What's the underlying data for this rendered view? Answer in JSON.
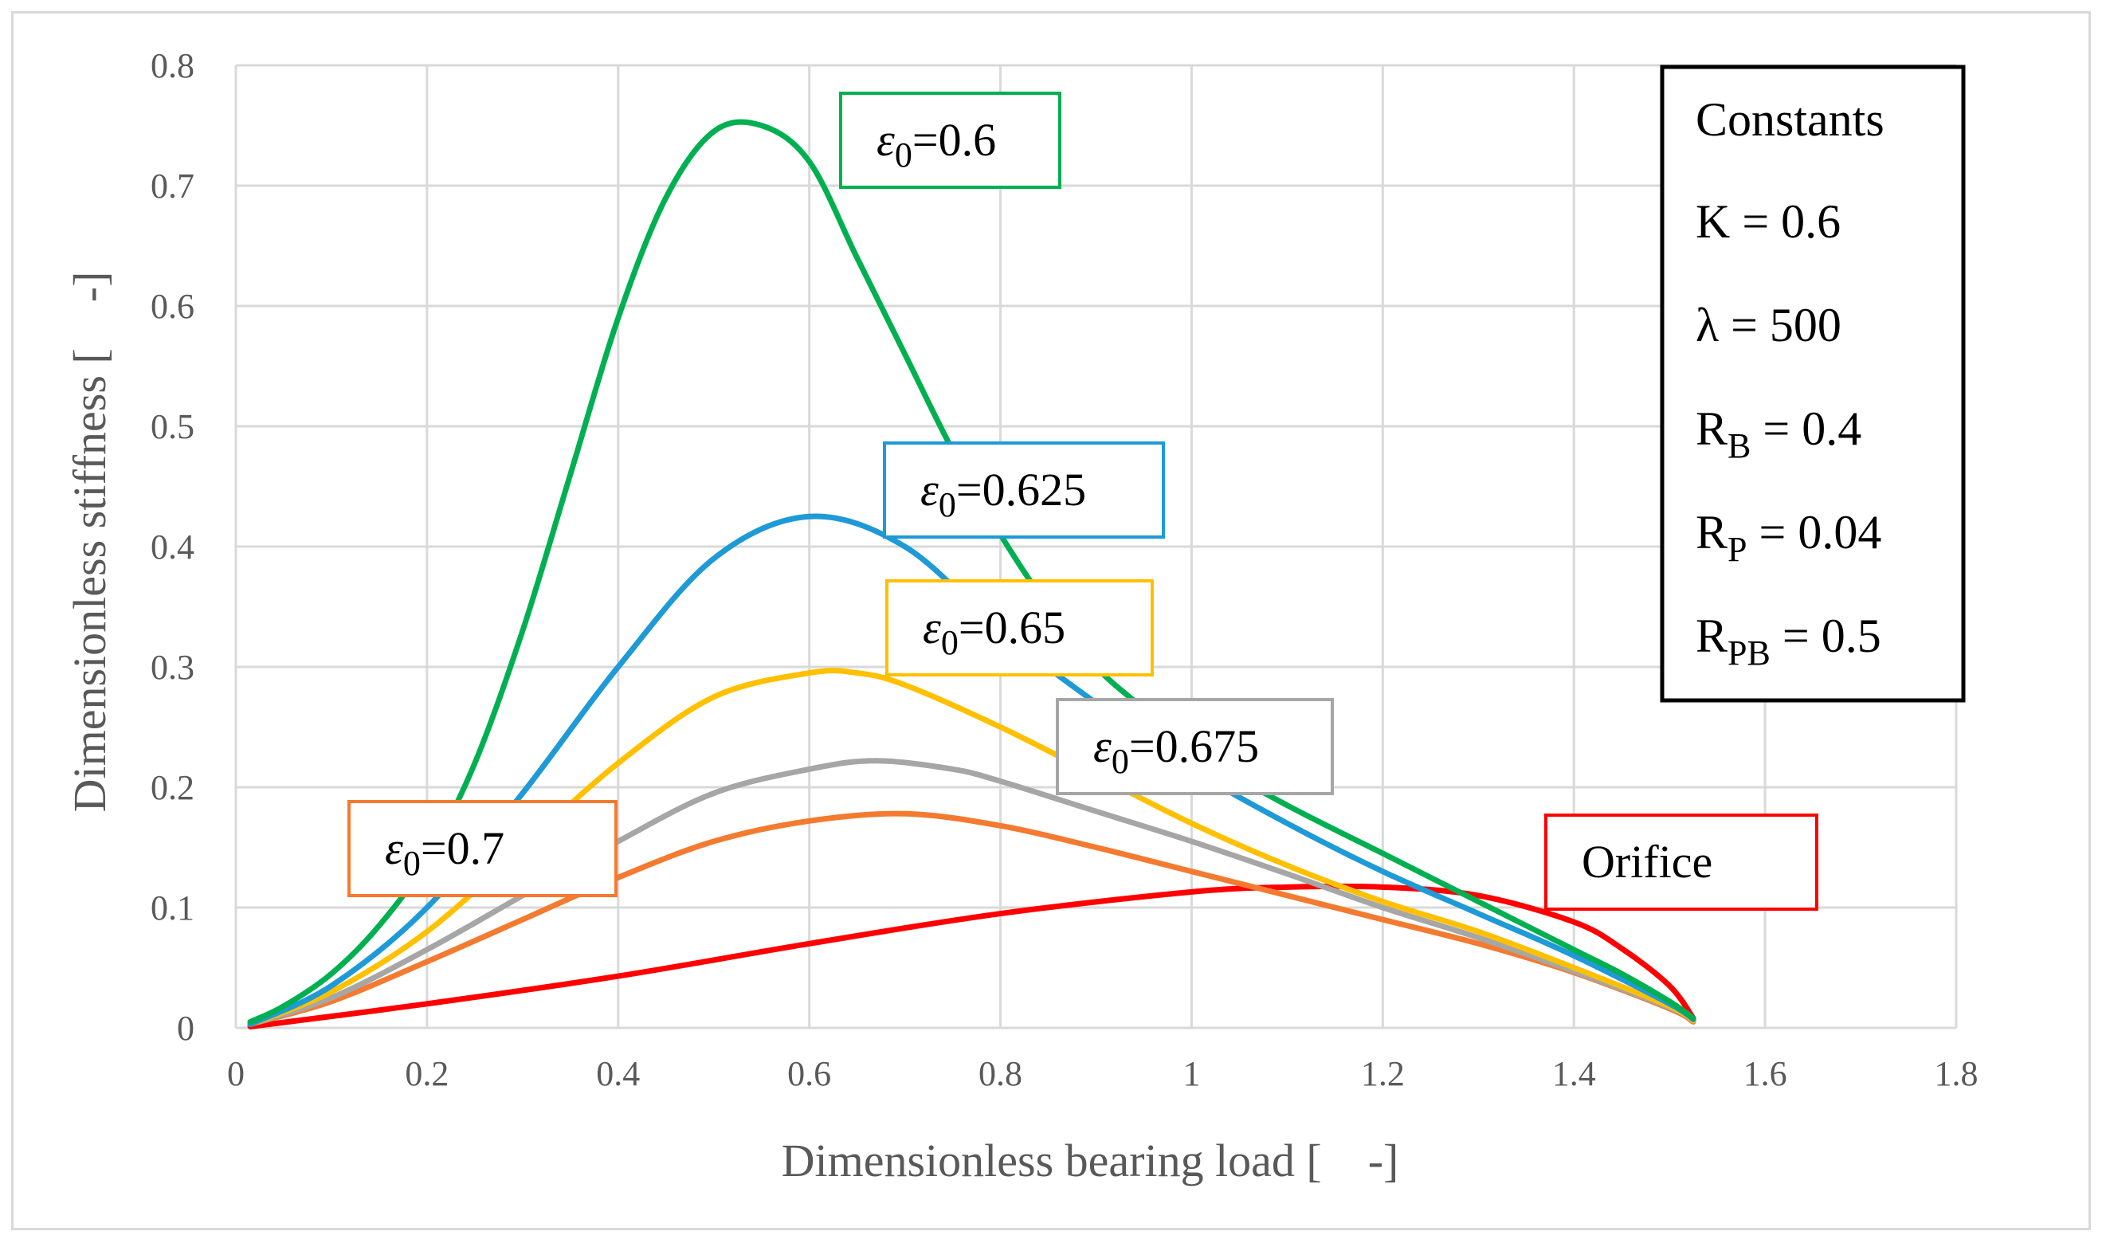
{
  "chart_data": {
    "type": "line",
    "xlabel": "Dimensionless bearing load [　-]",
    "ylabel": "Dimensionless stiffness [　-]",
    "xlim": [
      0,
      1.8
    ],
    "ylim": [
      0,
      0.8
    ],
    "xticks": [
      "0",
      "0.2",
      "0.4",
      "0.6",
      "0.8",
      "1",
      "1.2",
      "1.4",
      "1.6",
      "1.8"
    ],
    "yticks": [
      "0",
      "0.1",
      "0.2",
      "0.3",
      "0.4",
      "0.5",
      "0.6",
      "0.7",
      "0.8"
    ],
    "grid": true,
    "series": [
      {
        "name": "ε0=0.6",
        "label_main": "ε",
        "label_sub": "0",
        "label_rest": "=0.6",
        "color": "#00b050",
        "x": [
          0.015,
          0.05,
          0.1,
          0.15,
          0.2,
          0.25,
          0.3,
          0.35,
          0.4,
          0.45,
          0.5,
          0.55,
          0.6,
          0.65,
          0.7,
          0.75,
          0.8,
          0.85,
          0.9,
          0.95,
          1.0,
          1.1,
          1.2,
          1.3,
          1.4,
          1.45,
          1.5,
          1.525
        ],
        "y": [
          0.005,
          0.018,
          0.045,
          0.085,
          0.14,
          0.22,
          0.33,
          0.46,
          0.59,
          0.69,
          0.745,
          0.75,
          0.72,
          0.64,
          0.56,
          0.48,
          0.41,
          0.35,
          0.3,
          0.265,
          0.23,
          0.185,
          0.145,
          0.105,
          0.065,
          0.045,
          0.022,
          0.008
        ]
      },
      {
        "name": "ε0=0.625",
        "label_main": "ε",
        "label_sub": "0",
        "label_rest": "=0.625",
        "color": "#1e9ad6",
        "x": [
          0.015,
          0.1,
          0.2,
          0.3,
          0.4,
          0.5,
          0.6,
          0.7,
          0.8,
          0.9,
          1.0,
          1.1,
          1.2,
          1.3,
          1.4,
          1.5,
          1.525
        ],
        "y": [
          0.003,
          0.035,
          0.1,
          0.195,
          0.3,
          0.39,
          0.425,
          0.4,
          0.33,
          0.27,
          0.215,
          0.17,
          0.13,
          0.095,
          0.06,
          0.02,
          0.007
        ]
      },
      {
        "name": "ε0=0.65",
        "label_main": "ε",
        "label_sub": "0",
        "label_rest": "=0.65",
        "color": "#ffc000",
        "x": [
          0.015,
          0.1,
          0.2,
          0.3,
          0.4,
          0.5,
          0.6,
          0.65,
          0.7,
          0.8,
          0.9,
          1.0,
          1.1,
          1.2,
          1.3,
          1.4,
          1.5,
          1.525
        ],
        "y": [
          0.003,
          0.03,
          0.08,
          0.15,
          0.22,
          0.275,
          0.295,
          0.295,
          0.285,
          0.25,
          0.21,
          0.17,
          0.135,
          0.105,
          0.08,
          0.05,
          0.018,
          0.006
        ]
      },
      {
        "name": "ε0=0.675",
        "label_main": "ε",
        "label_sub": "0",
        "label_rest": "=0.675",
        "color": "#a6a6a6",
        "x": [
          0.015,
          0.1,
          0.2,
          0.3,
          0.4,
          0.5,
          0.6,
          0.67,
          0.75,
          0.8,
          0.9,
          1.0,
          1.1,
          1.2,
          1.3,
          1.4,
          1.5,
          1.525
        ],
        "y": [
          0.003,
          0.025,
          0.065,
          0.11,
          0.155,
          0.195,
          0.215,
          0.222,
          0.215,
          0.205,
          0.18,
          0.155,
          0.128,
          0.1,
          0.075,
          0.047,
          0.017,
          0.006
        ]
      },
      {
        "name": "ε0=0.7",
        "label_main": "ε",
        "label_sub": "0",
        "label_rest": "=0.7",
        "color": "#f47a2f",
        "x": [
          0.015,
          0.1,
          0.2,
          0.3,
          0.4,
          0.5,
          0.6,
          0.7,
          0.8,
          0.9,
          1.0,
          1.1,
          1.2,
          1.3,
          1.4,
          1.5,
          1.525
        ],
        "y": [
          0.003,
          0.022,
          0.055,
          0.09,
          0.125,
          0.155,
          0.172,
          0.178,
          0.168,
          0.15,
          0.13,
          0.11,
          0.09,
          0.07,
          0.046,
          0.016,
          0.005
        ]
      },
      {
        "name": "Orifice",
        "label_main": "Orifice",
        "label_sub": "",
        "label_rest": "",
        "color": "#ff0000",
        "x": [
          0.015,
          0.2,
          0.4,
          0.6,
          0.8,
          1.0,
          1.1,
          1.2,
          1.3,
          1.4,
          1.45,
          1.5,
          1.525
        ],
        "y": [
          0.001,
          0.02,
          0.043,
          0.07,
          0.095,
          0.113,
          0.117,
          0.117,
          0.11,
          0.088,
          0.066,
          0.035,
          0.008
        ]
      }
    ],
    "constants_box": {
      "title": "Constants",
      "items": [
        {
          "main": "K = 0.6",
          "sub": "",
          "rest": ""
        },
        {
          "main": "λ = 500",
          "sub": "",
          "rest": ""
        },
        {
          "main": "R",
          "sub": "B",
          "rest": " = 0.4"
        },
        {
          "main": "R",
          "sub": "P",
          "rest": " = 0.04"
        },
        {
          "main": "R",
          "sub": "PB",
          "rest": " = 0.5"
        }
      ],
      "border_color": "#000000"
    }
  }
}
